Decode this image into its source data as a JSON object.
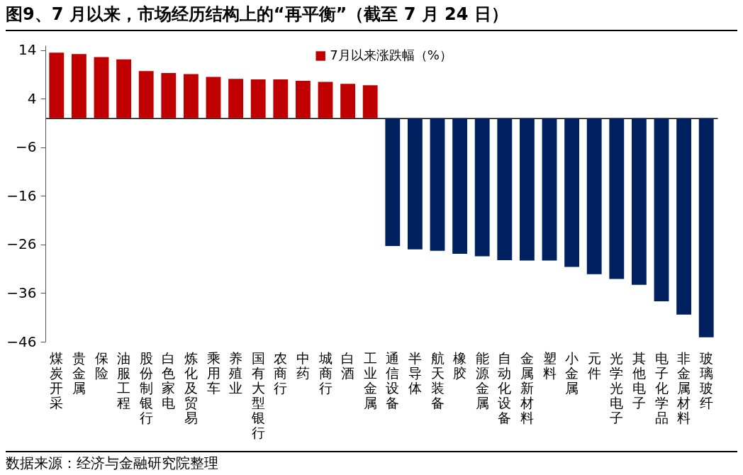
{
  "chart_data": {
    "type": "bar",
    "title": "图9、7 月以来，市场经历结构上的“再平衡”（截至 7 月 24 日）",
    "categories": [
      "煤炭开采",
      "贵金属",
      "保险",
      "油服工程",
      "股份制银行",
      "白色家电",
      "炼化及贸易",
      "乘用车",
      "养殖业",
      "国有大型银行",
      "农商行",
      "中药",
      "城商行",
      "白酒",
      "工业金属",
      "通信设备",
      "半导体",
      "航天装备",
      "橡胶",
      "能源金属",
      "自动化设备",
      "金属新材料",
      "塑料",
      "小金属",
      "元件",
      "光学光电子",
      "其他电子",
      "电子化学品",
      "非金属材料",
      "玻璃玻纤"
    ],
    "series": [
      {
        "name": "7月以来涨跌幅（%）",
        "color": "#c00000",
        "colors": [
          "#c00000",
          "#c00000",
          "#c00000",
          "#c00000",
          "#c00000",
          "#c00000",
          "#c00000",
          "#c00000",
          "#c00000",
          "#c00000",
          "#c00000",
          "#c00000",
          "#c00000",
          "#c00000",
          "#c00000",
          "#002060",
          "#002060",
          "#002060",
          "#002060",
          "#002060",
          "#002060",
          "#002060",
          "#002060",
          "#002060",
          "#002060",
          "#002060",
          "#002060",
          "#002060",
          "#002060",
          "#002060"
        ],
        "values": [
          13.5,
          13.2,
          12.6,
          12.1,
          9.7,
          9.3,
          9.1,
          8.5,
          8.1,
          8.0,
          8.0,
          7.7,
          7.5,
          7.1,
          6.8,
          -26.3,
          -27.0,
          -27.3,
          -27.9,
          -28.4,
          -29.2,
          -29.3,
          -29.3,
          -30.6,
          -32.1,
          -33.1,
          -34.3,
          -37.7,
          -40.4,
          -45.1
        ]
      }
    ],
    "ylim": [
      -46,
      15
    ],
    "yticks": [
      14,
      4,
      -6,
      -16,
      -26,
      -36,
      -46
    ],
    "grid": false,
    "legend": "top",
    "annotations": [
      "数据来源：经济与金融研究院整理"
    ]
  }
}
